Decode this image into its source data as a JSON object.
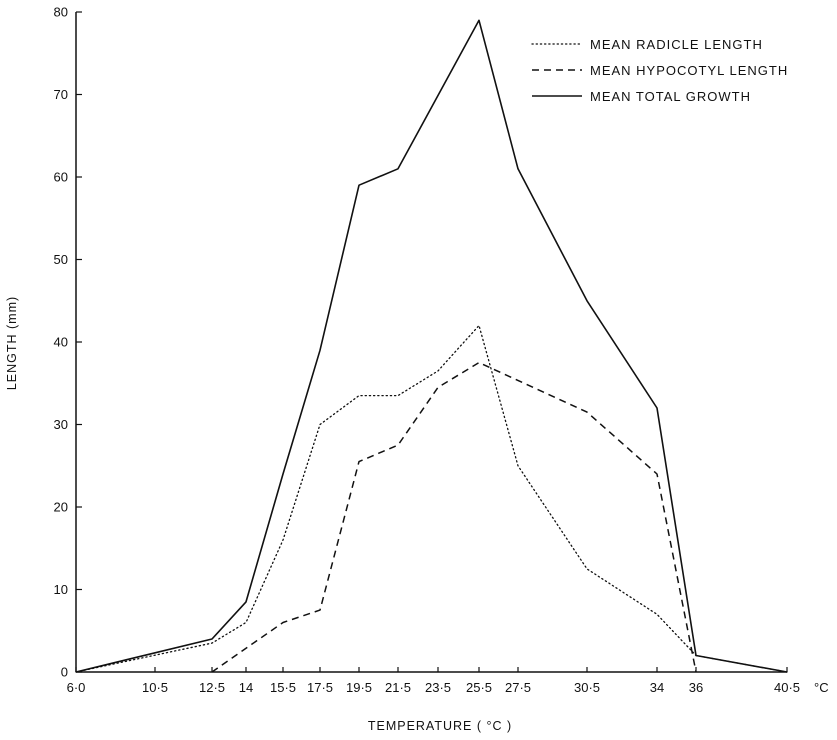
{
  "chart_data": {
    "type": "line",
    "title": "",
    "xlabel": "TEMPERATURE ( °C )",
    "ylabel": "LENGTH (mm)",
    "x_unit_label": "°C",
    "x_tick_labels": [
      "6·0",
      "10·5",
      "12·5",
      "14",
      "15·5",
      "17·5",
      "19·5",
      "21·5",
      "23·5",
      "25·5",
      "27·5",
      "30·5",
      "34",
      "36",
      "40·5"
    ],
    "x_tick_values": [
      6.0,
      10.5,
      12.5,
      14,
      15.5,
      17.5,
      19.5,
      21.5,
      23.5,
      25.5,
      27.5,
      30.5,
      34,
      36,
      40.5
    ],
    "y_ticks": [
      0,
      10,
      20,
      30,
      40,
      50,
      60,
      70,
      80
    ],
    "ylim": [
      0,
      80
    ],
    "grid": false,
    "legend_position": "top-right",
    "series": [
      {
        "name": "MEAN RADICLE LENGTH",
        "style": "dotted",
        "points": [
          [
            6.0,
            0
          ],
          [
            12.5,
            3.5
          ],
          [
            14,
            6
          ],
          [
            15.5,
            16
          ],
          [
            17.5,
            30
          ],
          [
            19.5,
            33.5
          ],
          [
            21.5,
            33.5
          ],
          [
            23.5,
            36.5
          ],
          [
            25.5,
            42
          ],
          [
            27.5,
            25
          ],
          [
            30.5,
            12.5
          ],
          [
            34,
            7
          ],
          [
            36,
            2
          ],
          [
            40.5,
            0
          ]
        ]
      },
      {
        "name": "MEAN HYPOCOTYL LENGTH",
        "style": "dashed",
        "points": [
          [
            12.5,
            0
          ],
          [
            15.5,
            6
          ],
          [
            17.5,
            7.5
          ],
          [
            19.5,
            25.5
          ],
          [
            21.5,
            27.5
          ],
          [
            23.5,
            34.5
          ],
          [
            25.5,
            37.5
          ],
          [
            30.5,
            31.5
          ],
          [
            34,
            24
          ],
          [
            36,
            0
          ]
        ]
      },
      {
        "name": "MEAN TOTAL GROWTH",
        "style": "solid",
        "points": [
          [
            6.0,
            0
          ],
          [
            12.5,
            4
          ],
          [
            14,
            8.5
          ],
          [
            15.5,
            24
          ],
          [
            17.5,
            39
          ],
          [
            19.5,
            59
          ],
          [
            21.5,
            61
          ],
          [
            25.5,
            79
          ],
          [
            27.5,
            61
          ],
          [
            30.5,
            45
          ],
          [
            34,
            32
          ],
          [
            36,
            2
          ],
          [
            40.5,
            0
          ]
        ]
      }
    ]
  }
}
